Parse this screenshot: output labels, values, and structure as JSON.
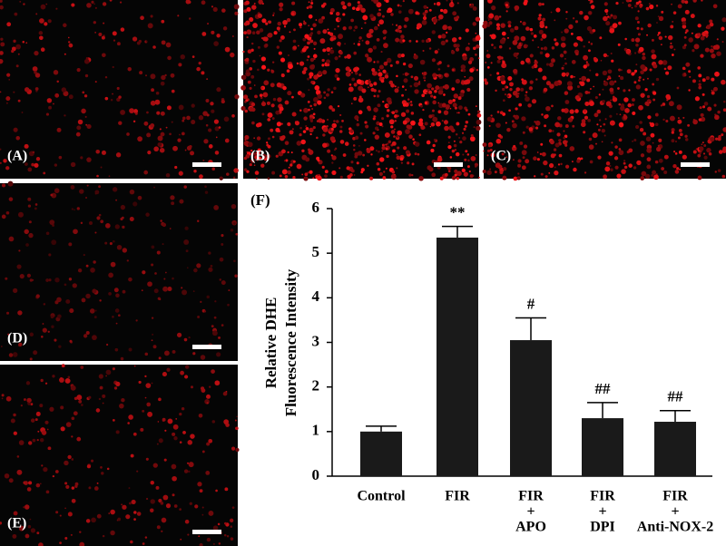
{
  "panels": [
    {
      "label": "(A)"
    },
    {
      "label": "(B)"
    },
    {
      "label": "(C)"
    },
    {
      "label": "(D)"
    },
    {
      "label": "(E)"
    }
  ],
  "chart_data": {
    "type": "bar",
    "panel_label": "(F)",
    "ylabel": [
      "Relative DHE",
      "Fluorescence Intensity"
    ],
    "categories": [
      [
        "Control"
      ],
      [
        "FIR"
      ],
      [
        "FIR",
        "+",
        "APO"
      ],
      [
        "FIR",
        "+",
        "DPI"
      ],
      [
        "FIR",
        "+",
        "Anti-NOX-2"
      ]
    ],
    "values": [
      1.0,
      5.35,
      3.05,
      1.3,
      1.22
    ],
    "errors": [
      0.12,
      0.25,
      0.5,
      0.35,
      0.25
    ],
    "annotations": [
      null,
      "**",
      "#",
      "##",
      "##"
    ],
    "color": "#1a1a1a",
    "ylim": [
      0,
      6
    ],
    "yticks": [
      0,
      1,
      2,
      3,
      4,
      5,
      6
    ]
  }
}
